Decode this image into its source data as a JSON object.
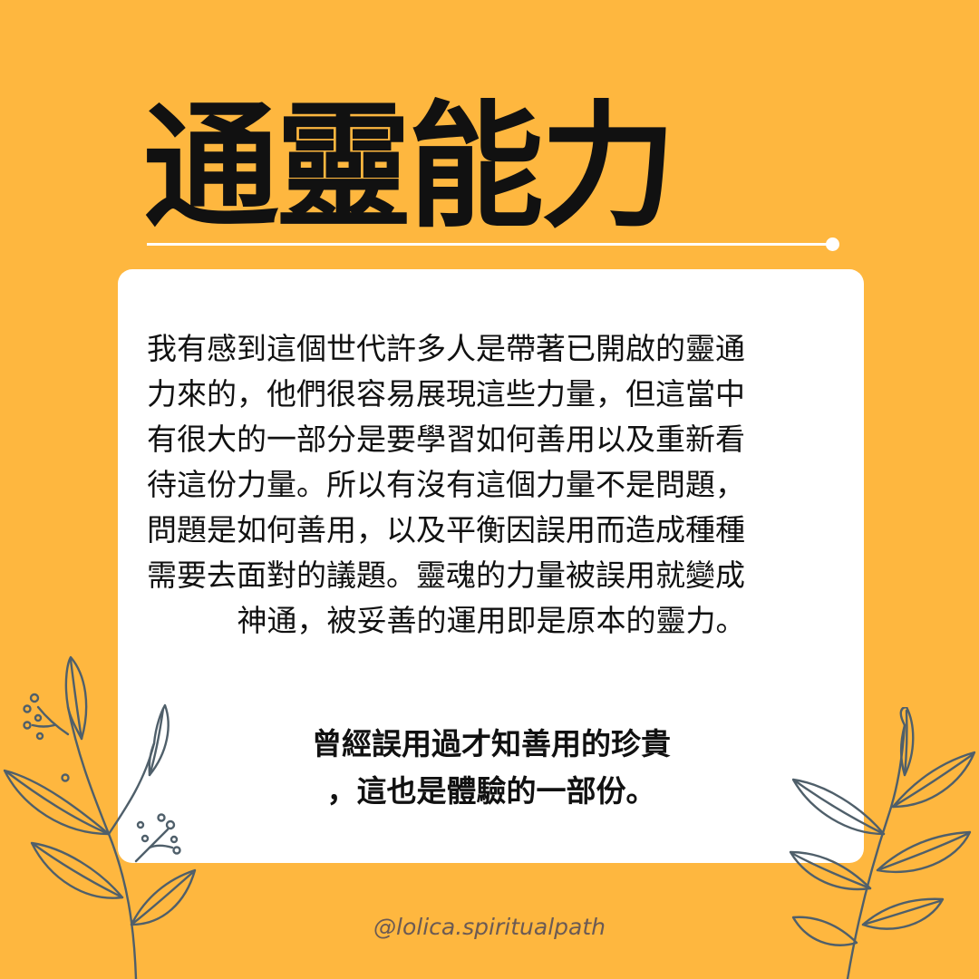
{
  "title": "通靈能力",
  "body_lines": [
    "我有感到這個世代許多人是帶著已開啟的靈通",
    "力來的，他們很容易展現這些力量，但這當中",
    "有很大的一部分是要學習如何善用以及重新看",
    "待這份力量。所以有沒有這個力量不是問題，",
    "問題是如何善用，以及平衡因誤用而造成種種",
    "需要去面對的議題。靈魂的力量被誤用就變成",
    "神通，被妥善的運用即是原本的靈力。"
  ],
  "emphasis_lines": [
    "曾經誤用過才知善用的珍貴",
    "，這也是體驗的一部份。"
  ],
  "handle": "@lolica.spiritualpath",
  "colors": {
    "background": "#FEB73F",
    "card": "#FFFFFF",
    "text": "#111111",
    "leaf_stroke": "#4F5F6A",
    "handle": "#6B5A54"
  },
  "icons": {
    "left_decoration": "leaf-branch-icon",
    "right_decoration": "leaf-branch-icon"
  }
}
